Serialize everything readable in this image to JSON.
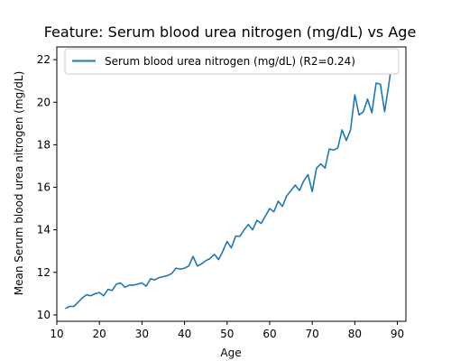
{
  "chart_data": {
    "type": "line",
    "title": "Feature: Serum blood urea nitrogen (mg/dL) vs Age",
    "xlabel": "Age",
    "ylabel": "Mean Serum blood urea nitrogen (mg/dL)",
    "xlim": [
      10,
      92
    ],
    "ylim": [
      9.7,
      22.6
    ],
    "xticks": [
      10,
      20,
      30,
      40,
      50,
      60,
      70,
      80,
      90
    ],
    "yticks": [
      10,
      12,
      14,
      16,
      18,
      20,
      22
    ],
    "legend_position": "top-left",
    "grid": false,
    "series": [
      {
        "name": "Serum blood urea nitrogen (mg/dL) (R2=0.24)",
        "color": "#1f77b4",
        "x": [
          12,
          13,
          14,
          15,
          16,
          17,
          18,
          19,
          20,
          21,
          22,
          23,
          24,
          25,
          26,
          27,
          28,
          29,
          30,
          31,
          32,
          33,
          34,
          35,
          36,
          37,
          38,
          39,
          40,
          41,
          42,
          43,
          44,
          45,
          46,
          47,
          48,
          49,
          50,
          51,
          52,
          53,
          54,
          55,
          56,
          57,
          58,
          59,
          60,
          61,
          62,
          63,
          64,
          65,
          66,
          67,
          68,
          69,
          70,
          71,
          72,
          73,
          74,
          75,
          76,
          77,
          78,
          79,
          80,
          81,
          82,
          83,
          84,
          85,
          86,
          87,
          88,
          89
        ],
        "y": [
          10.3,
          10.4,
          10.4,
          10.6,
          10.8,
          10.95,
          10.9,
          11.0,
          11.05,
          10.9,
          11.2,
          11.15,
          11.45,
          11.5,
          11.3,
          11.4,
          11.4,
          11.45,
          11.5,
          11.35,
          11.7,
          11.65,
          11.75,
          11.8,
          11.85,
          11.95,
          12.2,
          12.15,
          12.2,
          12.3,
          12.75,
          12.3,
          12.4,
          12.55,
          12.65,
          12.85,
          12.6,
          13.0,
          13.45,
          13.15,
          13.7,
          13.7,
          14.0,
          14.25,
          14.0,
          14.45,
          14.3,
          14.65,
          15.0,
          14.85,
          15.35,
          15.1,
          15.6,
          15.85,
          16.1,
          15.85,
          16.3,
          16.6,
          15.8,
          16.9,
          17.1,
          16.9,
          17.8,
          17.75,
          17.85,
          18.7,
          18.2,
          18.7,
          20.35,
          19.4,
          19.55,
          20.15,
          19.5,
          20.9,
          20.85,
          19.55,
          20.85,
          22.3
        ]
      }
    ]
  }
}
